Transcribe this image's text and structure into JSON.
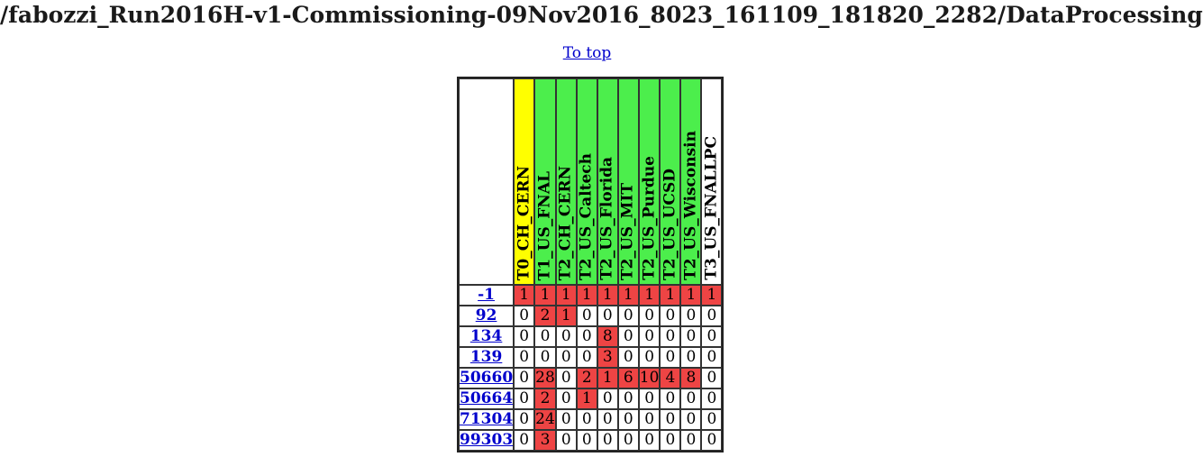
{
  "page": {
    "title": "/fabozzi_Run2016H-v1-Commissioning-09Nov2016_8023_161109_181820_2282/DataProcessing",
    "to_top_label": "To top"
  },
  "colors": {
    "tier0": "#ffff00",
    "tier2_ok": "#4cee4c",
    "tier3": "#ffffff",
    "nonzero": "#ee4444",
    "link": "#0000cc"
  },
  "sites": [
    {
      "name": "T0_CH_CERN",
      "color": "yellow"
    },
    {
      "name": "T1_US_FNAL",
      "color": "green"
    },
    {
      "name": "T2_CH_CERN",
      "color": "green"
    },
    {
      "name": "T2_US_Caltech",
      "color": "green"
    },
    {
      "name": "T2_US_Florida",
      "color": "green"
    },
    {
      "name": "T2_US_MIT",
      "color": "green"
    },
    {
      "name": "T2_US_Purdue",
      "color": "green"
    },
    {
      "name": "T2_US_UCSD",
      "color": "green"
    },
    {
      "name": "T2_US_Wisconsin",
      "color": "green"
    },
    {
      "name": "T3_US_FNALLPC",
      "color": "white"
    }
  ],
  "rows": [
    {
      "code": "-1",
      "values": [
        "1",
        "1",
        "1",
        "1",
        "1",
        "1",
        "1",
        "1",
        "1",
        "1"
      ]
    },
    {
      "code": "92",
      "values": [
        "0",
        "2",
        "1",
        "0",
        "0",
        "0",
        "0",
        "0",
        "0",
        "0"
      ]
    },
    {
      "code": "134",
      "values": [
        "0",
        "0",
        "0",
        "0",
        "8",
        "0",
        "0",
        "0",
        "0",
        "0"
      ]
    },
    {
      "code": "139",
      "values": [
        "0",
        "0",
        "0",
        "0",
        "3",
        "0",
        "0",
        "0",
        "0",
        "0"
      ]
    },
    {
      "code": "50660",
      "values": [
        "0",
        "28",
        "0",
        "2",
        "1",
        "6",
        "10",
        "4",
        "8",
        "0"
      ]
    },
    {
      "code": "50664",
      "values": [
        "0",
        "2",
        "0",
        "1",
        "0",
        "0",
        "0",
        "0",
        "0",
        "0"
      ]
    },
    {
      "code": "71304",
      "values": [
        "0",
        "24",
        "0",
        "0",
        "0",
        "0",
        "0",
        "0",
        "0",
        "0"
      ]
    },
    {
      "code": "99303",
      "values": [
        "0",
        "3",
        "0",
        "0",
        "0",
        "0",
        "0",
        "0",
        "0",
        "0"
      ]
    }
  ]
}
